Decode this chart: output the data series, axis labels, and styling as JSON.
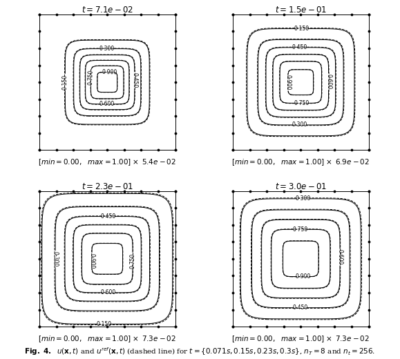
{
  "times": [
    0.071,
    0.15,
    0.23,
    0.3
  ],
  "time_labels": [
    "t =7.1e−02",
    "t =1.5e−01",
    "t =2.3e−01",
    "t =3.0e−01"
  ],
  "time_labels_plain": [
    "$t = 7.1e-02$",
    "$t = 1.5e-01$",
    "$t = 2.3e-01$",
    "$t = 3.0e-01$"
  ],
  "scales": [
    "5.4e−02",
    "6.9e−02",
    "7.3e−02",
    "7.3e−02"
  ],
  "scales_plain": [
    "5.4e-02",
    "6.9e-02",
    "7.3e-02",
    "7.3e-02"
  ],
  "contour_levels": [
    0.15,
    0.3,
    0.45,
    0.6,
    0.75,
    0.9
  ],
  "min_val": 0.0,
  "max_val": 1.0,
  "fig_width": 5.79,
  "fig_height": 5.2,
  "background_color": "#ffffff",
  "contour_color": "black",
  "title_fontsize": 8.5,
  "label_fontsize": 7.5,
  "caption_fontsize": 7.5,
  "n_dots_edge": 9,
  "dot_size": 3.5
}
